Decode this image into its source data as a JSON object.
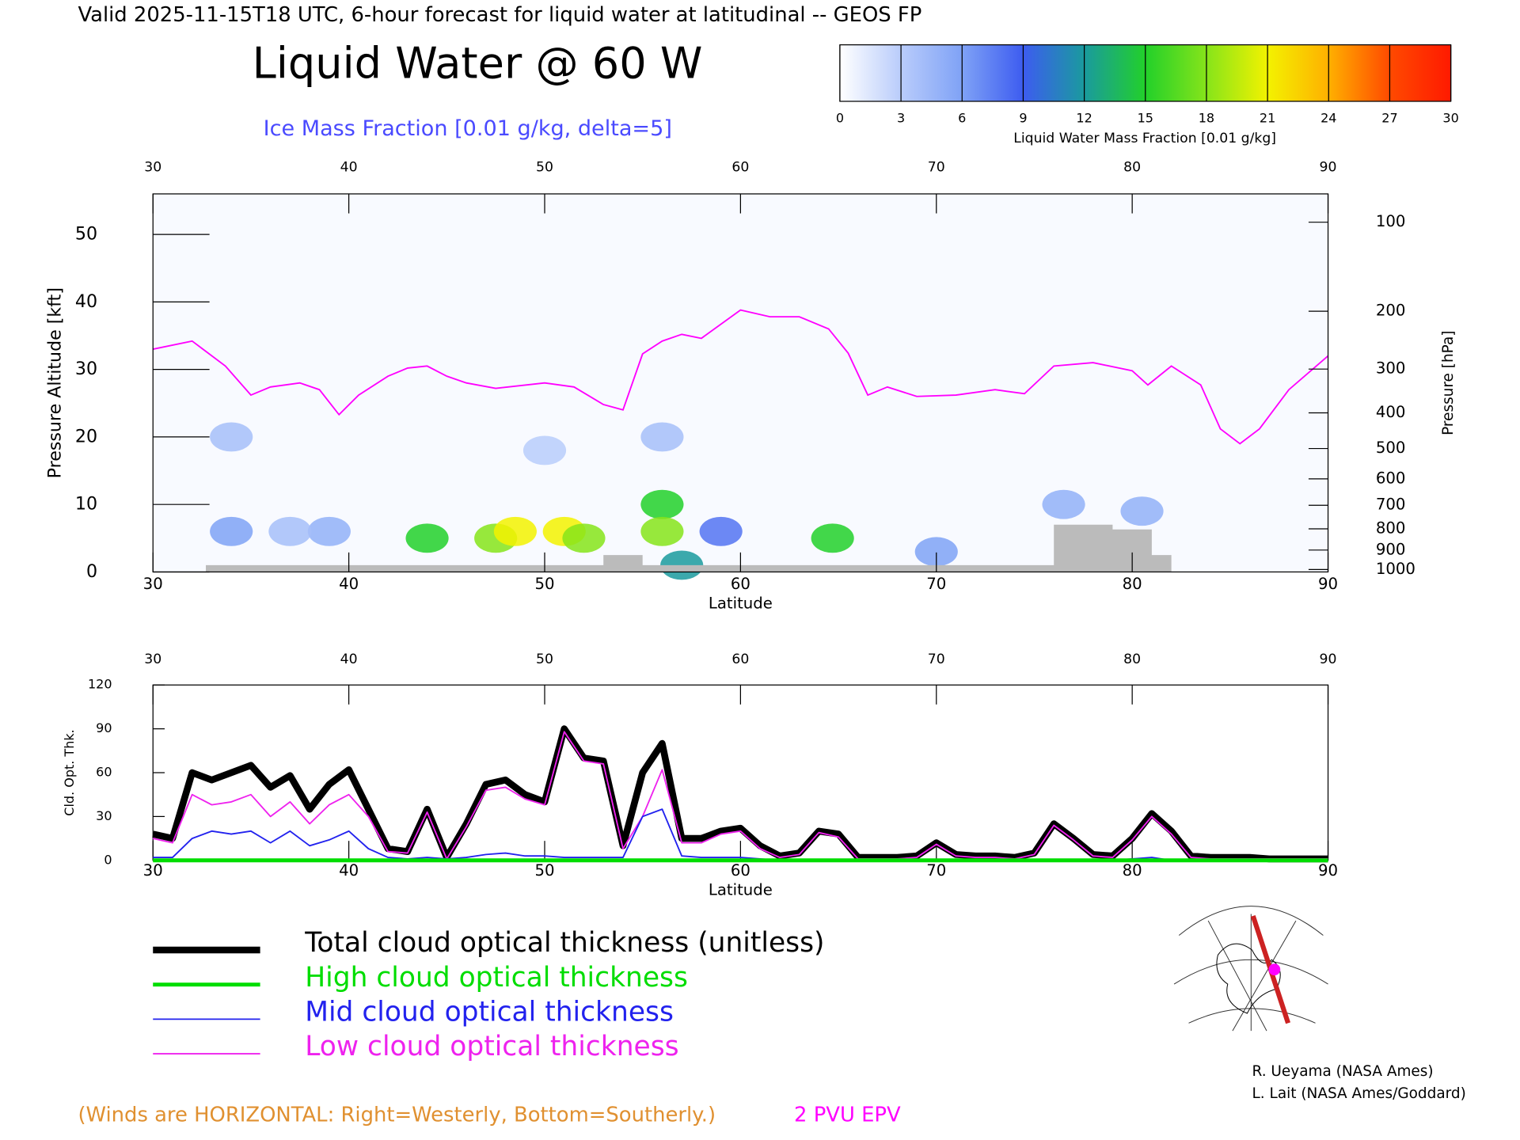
{
  "chart_data": [
    {
      "type": "cross-section",
      "header": "Valid 2025-11-15T18 UTC, 6-hour forecast for liquid water at latitudinal -- GEOS FP",
      "title": "Liquid Water @ 60 W",
      "subtitle": "Ice Mass Fraction [0.01 g/kg, delta=5]",
      "xlabel": "Latitude",
      "ylabel": "Pressure Altitude [kft]",
      "y2label": "Pressure [hPa]",
      "xlim": [
        30,
        90
      ],
      "xticks": [
        30,
        40,
        50,
        60,
        70,
        80,
        90
      ],
      "ylim": [
        0,
        56
      ],
      "yticks": [
        0,
        10,
        20,
        30,
        40,
        50
      ],
      "y2scale": "pressure-altitude",
      "y2ticks": [
        100,
        200,
        300,
        400,
        500,
        600,
        700,
        800,
        900,
        1000
      ],
      "colorbar": {
        "label": "Liquid Water Mass Fraction [0.01 g/kg]",
        "lim": [
          0,
          30
        ],
        "ticks": [
          0,
          3,
          6,
          9,
          12,
          15,
          18,
          21,
          24,
          27,
          30
        ],
        "colors": [
          "#ffffff",
          "#b9ccfb",
          "#7fa2f6",
          "#3d5cf0",
          "#1a9a9e",
          "#22d02a",
          "#86e41a",
          "#f3f200",
          "#ffb000",
          "#ff4a00",
          "#ff1a00"
        ]
      },
      "epv": {
        "name": "2 PVU EPV",
        "color": "#ff00ff",
        "x": [
          30,
          32,
          33.7,
          35,
          36,
          37.5,
          38.5,
          39.5,
          40.5,
          42,
          43,
          44,
          45,
          46,
          47.5,
          50,
          51.5,
          53,
          54,
          55,
          56,
          57,
          58,
          60,
          61.5,
          63,
          64.5,
          65.5,
          66.5,
          67.5,
          69,
          71,
          73,
          74.5,
          76,
          78,
          80,
          80.8,
          82,
          83.5,
          84.5,
          85.5,
          86.5,
          88,
          90
        ],
        "values": [
          33,
          34.2,
          30.5,
          26.2,
          27.4,
          28,
          27,
          23.3,
          26.2,
          29,
          30.2,
          30.5,
          29,
          28,
          27.2,
          28,
          27.4,
          24.8,
          24,
          32.3,
          34.2,
          35.2,
          34.6,
          38.8,
          37.8,
          37.8,
          36,
          32.4,
          26.2,
          27.4,
          26,
          26.2,
          27,
          26.4,
          30.5,
          31,
          29.8,
          27.7,
          30.5,
          27.7,
          21.2,
          19,
          21.2,
          27,
          32
        ]
      },
      "terrain": {
        "color": "#bbbbbb",
        "x": [
          32.7,
          53,
          55,
          76,
          79,
          81,
          82
        ],
        "values": [
          1,
          2.5,
          1,
          7,
          6.3,
          2.5,
          0
        ]
      },
      "cells": [
        {
          "lat": 34,
          "alt": 20,
          "value": 4
        },
        {
          "lat": 34,
          "alt": 6,
          "value": 6
        },
        {
          "lat": 39,
          "alt": 6,
          "value": 5
        },
        {
          "lat": 37,
          "alt": 6,
          "value": 4
        },
        {
          "lat": 44,
          "alt": 5,
          "value": 15
        },
        {
          "lat": 47.5,
          "alt": 5,
          "value": 18
        },
        {
          "lat": 48.5,
          "alt": 6,
          "value": 21
        },
        {
          "lat": 51,
          "alt": 6,
          "value": 21
        },
        {
          "lat": 52,
          "alt": 5,
          "value": 18
        },
        {
          "lat": 56,
          "alt": 10,
          "value": 15
        },
        {
          "lat": 56,
          "alt": 6,
          "value": 18
        },
        {
          "lat": 57,
          "alt": 1,
          "value": 12
        },
        {
          "lat": 59,
          "alt": 6,
          "value": 8
        },
        {
          "lat": 64.7,
          "alt": 5,
          "value": 15
        },
        {
          "lat": 70,
          "alt": 3,
          "value": 6
        },
        {
          "lat": 76.5,
          "alt": 10,
          "value": 5
        },
        {
          "lat": 80.5,
          "alt": 9,
          "value": 5
        },
        {
          "lat": 56,
          "alt": 20,
          "value": 4
        },
        {
          "lat": 50,
          "alt": 18,
          "value": 3
        }
      ]
    },
    {
      "type": "line",
      "xlabel": "Latitude",
      "ylabel": "Cld. Opt. Thk.",
      "xlim": [
        30,
        90
      ],
      "xticks": [
        30,
        40,
        50,
        60,
        70,
        80,
        90
      ],
      "ylim": [
        0,
        120
      ],
      "yticks": [
        0,
        30,
        60,
        90,
        120
      ],
      "x": [
        30,
        31,
        32,
        33,
        34,
        35,
        36,
        37,
        38,
        39,
        40,
        41,
        42,
        43,
        44,
        45,
        46,
        47,
        48,
        49,
        50,
        51,
        52,
        53,
        54,
        55,
        56,
        57,
        58,
        59,
        60,
        61,
        62,
        63,
        64,
        65,
        66,
        67,
        68,
        69,
        70,
        71,
        72,
        73,
        74,
        75,
        76,
        77,
        78,
        79,
        80,
        81,
        82,
        83,
        84,
        85,
        86,
        87,
        88,
        89,
        90
      ],
      "series": [
        {
          "name": "Total cloud optical thickness (unitless)",
          "color": "#000000",
          "width": 7,
          "values": [
            18,
            15,
            60,
            55,
            60,
            65,
            50,
            58,
            35,
            52,
            62,
            35,
            8,
            6,
            35,
            2,
            25,
            52,
            55,
            45,
            40,
            90,
            70,
            68,
            10,
            60,
            80,
            15,
            15,
            20,
            22,
            10,
            3,
            5,
            20,
            18,
            2,
            2,
            2,
            3,
            12,
            4,
            3,
            3,
            2,
            5,
            25,
            15,
            4,
            3,
            15,
            32,
            20,
            3,
            2,
            2,
            2,
            1,
            1,
            1,
            1
          ]
        },
        {
          "name": "High cloud optical thickness",
          "color": "#00dd00",
          "width": 4,
          "values": [
            0,
            0,
            0,
            0,
            0,
            0,
            0,
            0,
            0,
            0,
            0,
            0,
            0,
            0,
            0,
            0,
            0,
            0,
            0,
            0,
            0,
            0,
            0,
            0,
            0,
            0,
            0,
            0,
            0,
            0,
            0,
            0,
            0,
            0,
            0,
            0,
            0,
            0,
            0,
            0,
            0,
            0,
            0,
            0,
            0,
            0,
            0,
            0,
            0,
            0,
            0,
            0,
            0,
            0,
            0,
            0,
            0,
            0,
            0,
            0,
            0
          ]
        },
        {
          "name": "Mid cloud optical thickness",
          "color": "#2222ee",
          "width": 1.5,
          "values": [
            2,
            2,
            15,
            20,
            18,
            20,
            12,
            20,
            10,
            14,
            20,
            8,
            2,
            1,
            2,
            1,
            2,
            4,
            5,
            3,
            3,
            2,
            2,
            2,
            2,
            30,
            35,
            3,
            2,
            2,
            2,
            1,
            0,
            0,
            0,
            0,
            0,
            0,
            0,
            0,
            0,
            0,
            0,
            0,
            0,
            0,
            0,
            0,
            0,
            0,
            1,
            2,
            0,
            0,
            0,
            0,
            0,
            0,
            0,
            0,
            0
          ]
        },
        {
          "name": "Low cloud optical thickness",
          "color": "#ee22ee",
          "width": 1.5,
          "values": [
            15,
            12,
            45,
            38,
            40,
            45,
            30,
            40,
            25,
            38,
            45,
            30,
            6,
            5,
            33,
            1,
            23,
            48,
            50,
            42,
            38,
            88,
            68,
            66,
            8,
            30,
            62,
            12,
            12,
            18,
            20,
            8,
            2,
            4,
            19,
            16,
            1,
            1,
            1,
            2,
            11,
            3,
            2,
            2,
            1,
            4,
            24,
            14,
            3,
            2,
            14,
            30,
            18,
            2,
            1,
            1,
            1,
            1,
            1,
            1,
            1
          ]
        }
      ]
    }
  ],
  "note": "(Winds are HORIZONTAL: Right=Westerly, Bottom=Southerly.)",
  "credits": [
    "R. Ueyama (NASA Ames)",
    "L. Lait (NASA Ames/Goddard)"
  ]
}
